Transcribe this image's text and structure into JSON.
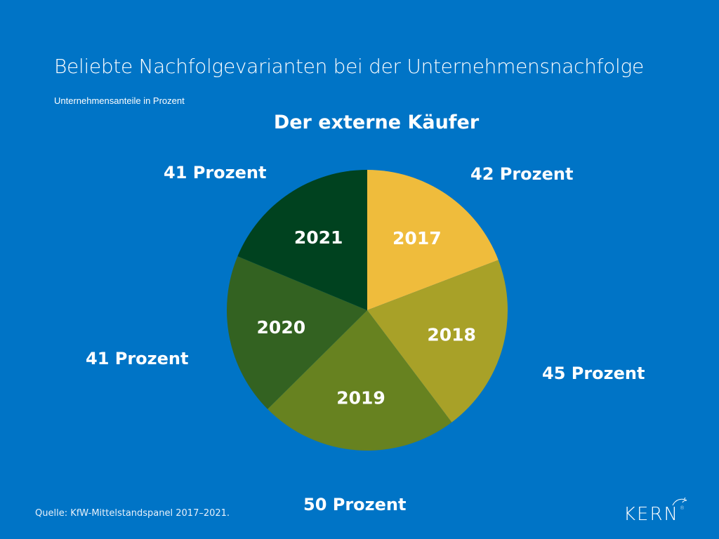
{
  "header": {
    "title": "Beliebte Nachfolgevarianten bei der Unternehmensnachfolge",
    "subtitle": "Unternehmensanteile in Prozent"
  },
  "footer": {
    "source": "Quelle: KfW-Mittelstandspanel 2017–2021.",
    "logo_text": "KERN",
    "logo_mark": "®"
  },
  "colors": {
    "background": "#0074C6",
    "text": "#FFFFFF"
  },
  "chart_data": {
    "type": "pie",
    "title": "Der externe Käufer",
    "start_angle": "top, clockwise",
    "categories": [
      "2017",
      "2018",
      "2019",
      "2020",
      "2021"
    ],
    "values": [
      42,
      45,
      50,
      41,
      41
    ],
    "value_labels": [
      "42 Prozent",
      "45 Prozent",
      "50 Prozent",
      "41 Prozent",
      "41 Prozent"
    ],
    "colors": [
      "#EFBC3C",
      "#A8A128",
      "#678220",
      "#336221",
      "#00421F"
    ],
    "unit": "Prozent"
  }
}
